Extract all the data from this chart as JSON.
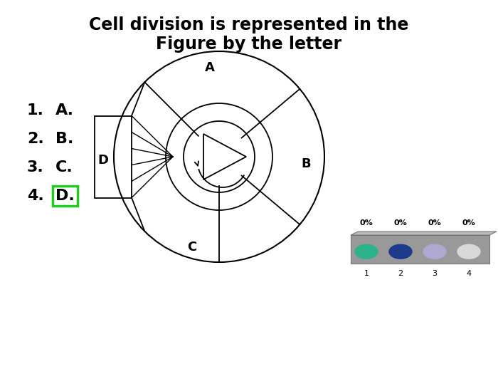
{
  "title_line1": "Cell division is represented in the",
  "title_line2": "Figure by the letter",
  "options": [
    "A.",
    "B.",
    "C.",
    "D."
  ],
  "option_numbers": [
    "1.",
    "2.",
    "3.",
    "4."
  ],
  "highlighted_option": 3,
  "highlight_color": "#22cc22",
  "bg_color": "#ffffff",
  "text_color": "#000000",
  "labels": [
    "A",
    "B",
    "C",
    "D"
  ],
  "poll_colors": [
    "#2db38a",
    "#1e3a8a",
    "#b0a8d0",
    "#d8d8d8"
  ],
  "poll_labels": [
    "0%",
    "0%",
    "0%",
    "0%"
  ],
  "poll_numbers": [
    "1",
    "2",
    "3",
    "4"
  ]
}
